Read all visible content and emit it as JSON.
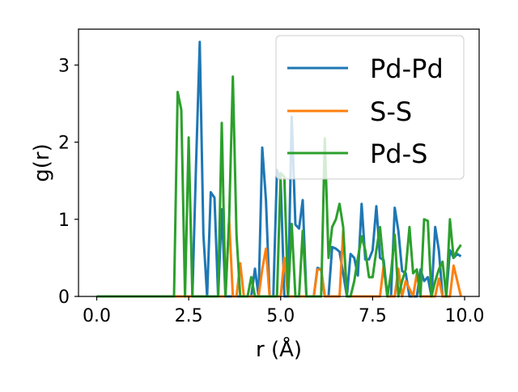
{
  "chart_data": {
    "type": "line",
    "title": "",
    "xlabel": "r (Å)",
    "ylabel": "g(r)",
    "xlim": [
      -0.495,
      10.395
    ],
    "ylim": [
      0,
      3.465
    ],
    "xticks": [
      "0.0",
      "2.5",
      "5.0",
      "7.5",
      "10.0"
    ],
    "xtick_values": [
      0,
      2.5,
      5,
      7.5,
      10
    ],
    "yticks": [
      "0",
      "1",
      "2",
      "3"
    ],
    "ytick_values": [
      0,
      1,
      2,
      3
    ],
    "grid": false,
    "legend_placement": "top-right",
    "x": [
      0.0,
      0.1,
      0.2,
      0.3,
      0.4,
      0.5,
      0.6,
      0.7,
      0.8,
      0.9,
      1.0,
      1.1,
      1.2,
      1.3,
      1.4,
      1.5,
      1.6,
      1.7,
      1.8,
      1.9,
      2.0,
      2.1,
      2.2,
      2.3,
      2.4,
      2.5,
      2.6,
      2.7,
      2.8,
      2.9,
      3.0,
      3.1,
      3.2,
      3.3,
      3.4,
      3.5,
      3.6,
      3.7,
      3.8,
      3.9,
      4.0,
      4.1,
      4.2,
      4.3,
      4.4,
      4.5,
      4.6,
      4.7,
      4.8,
      4.9,
      5.0,
      5.1,
      5.2,
      5.3,
      5.4,
      5.5,
      5.6,
      5.7,
      5.8,
      5.9,
      6.0,
      6.1,
      6.2,
      6.3,
      6.4,
      6.5,
      6.6,
      6.7,
      6.8,
      6.9,
      7.0,
      7.1,
      7.2,
      7.3,
      7.4,
      7.5,
      7.6,
      7.7,
      7.8,
      7.9,
      8.0,
      8.1,
      8.2,
      8.3,
      8.4,
      8.5,
      8.6,
      8.7,
      8.8,
      8.9,
      9.0,
      9.1,
      9.2,
      9.3,
      9.4,
      9.5,
      9.6,
      9.7,
      9.8,
      9.9
    ],
    "series": [
      {
        "name": "Pd-Pd",
        "color": "#1f77b4",
        "values": [
          0,
          0,
          0,
          0,
          0,
          0,
          0,
          0,
          0,
          0,
          0,
          0,
          0,
          0,
          0,
          0,
          0,
          0,
          0,
          0,
          0,
          0,
          0,
          0,
          0,
          0,
          0,
          1.7,
          3.3,
          0.8,
          0,
          1.35,
          1.28,
          0,
          1.13,
          0,
          0,
          0,
          0,
          0,
          0,
          0,
          0,
          0.36,
          0,
          1.93,
          1.25,
          0,
          0,
          1.64,
          1.5,
          0,
          0,
          2.33,
          0.93,
          0.88,
          1.25,
          0,
          0,
          0,
          0.37,
          0.35,
          0,
          0,
          0.64,
          0.62,
          0.58,
          0.3,
          0,
          0.55,
          0.5,
          0.27,
          1.2,
          0.48,
          0.48,
          0.6,
          1.17,
          0.5,
          0.47,
          0,
          0,
          1.15,
          0.85,
          0.33,
          0.3,
          0,
          0,
          0,
          0.35,
          0.2,
          0.25,
          0,
          0.9,
          0.6,
          0,
          0,
          0.6,
          0.5,
          0.55,
          0.52
        ]
      },
      {
        "name": "S-S",
        "color": "#ff7f0e",
        "values": [
          0,
          0,
          0,
          0,
          0,
          0,
          0,
          0,
          0,
          0,
          0,
          0,
          0,
          0,
          0,
          0,
          0,
          0,
          0,
          0,
          0,
          0,
          0,
          0,
          0,
          0,
          0,
          0,
          0,
          0,
          0,
          0,
          0,
          0,
          0,
          0,
          1.0,
          0,
          0,
          0.43,
          0,
          0,
          0,
          0,
          0,
          0.35,
          0.62,
          0,
          0,
          0,
          0,
          0.5,
          0,
          0,
          0,
          0,
          0,
          0,
          0,
          0,
          0.35,
          0.35,
          0,
          0,
          0,
          0,
          0,
          0.85,
          0,
          0,
          0,
          0,
          0,
          0,
          0,
          0,
          0,
          0,
          0.4,
          0,
          0,
          0,
          0.36,
          0,
          0.2,
          0.1,
          0,
          0.3,
          0,
          0,
          0,
          0,
          0,
          0.23,
          0,
          0,
          0,
          0.4,
          0.2,
          0
        ]
      },
      {
        "name": "Pd-S",
        "color": "#2ca02c",
        "values": [
          0,
          0,
          0,
          0,
          0,
          0,
          0,
          0,
          0,
          0,
          0,
          0,
          0,
          0,
          0,
          0,
          0,
          0,
          0,
          0,
          0,
          0,
          2.65,
          2.42,
          0,
          2.06,
          0,
          0,
          0,
          0,
          0,
          0,
          0,
          0,
          2.25,
          0,
          1.0,
          2.85,
          0.8,
          0,
          0,
          0,
          0.25,
          0,
          0,
          0,
          0,
          0,
          0,
          0,
          1.6,
          1.55,
          0,
          0.94,
          0,
          0,
          0.85,
          0,
          0,
          0,
          0,
          0,
          2.05,
          0.5,
          0.9,
          1.0,
          1.2,
          0.9,
          0,
          0,
          0.2,
          0.5,
          0.78,
          0.6,
          0.25,
          0.25,
          0.6,
          0.9,
          0.4,
          0,
          0.3,
          0.8,
          0,
          0.2,
          0.35,
          0.9,
          0.3,
          0.35,
          0,
          1.0,
          0.98,
          0,
          0.2,
          0.35,
          0.45,
          0,
          1.0,
          0.5,
          0.6,
          0.67
        ]
      }
    ]
  }
}
